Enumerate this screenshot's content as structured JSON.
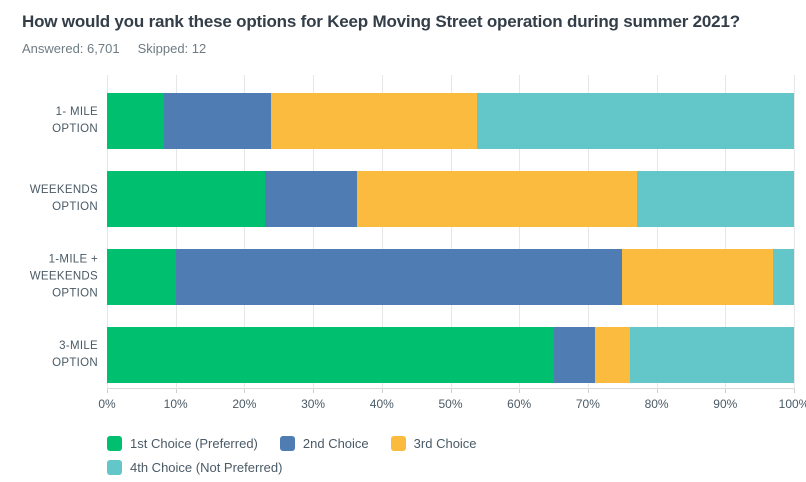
{
  "header": {
    "title": "How would you rank these options for Keep Moving Street operation during summer 2021?",
    "answered_label": "Answered: 6,701",
    "skipped_label": "Skipped: 12"
  },
  "chart_data": {
    "type": "bar",
    "orientation": "horizontal_stacked",
    "title": "How would you rank these options for Keep Moving Street operation during summer 2021?",
    "categories": [
      "1- MILE OPTION",
      "WEEKENDS OPTION",
      "1-MILE + WEEKENDS OPTION",
      "3-MILE OPTION"
    ],
    "category_label_lines": [
      [
        "1- MILE",
        "OPTION"
      ],
      [
        "WEEKENDS",
        "OPTION"
      ],
      [
        "1-MILE +",
        "WEEKENDS",
        "OPTION"
      ],
      [
        "3-MILE",
        "OPTION"
      ]
    ],
    "series": [
      {
        "name": "1st Choice (Preferred)",
        "color": "#00BF6F",
        "values": [
          8.3,
          23.0,
          10.0,
          65.1
        ]
      },
      {
        "name": "2nd Choice",
        "color": "#4F7DB3",
        "values": [
          15.6,
          13.4,
          64.9,
          6.0
        ]
      },
      {
        "name": "3rd Choice",
        "color": "#FBBB3F",
        "values": [
          30.0,
          40.7,
          22.1,
          5.1
        ]
      },
      {
        "name": "4th Choice (Not Preferred)",
        "color": "#63C6C8",
        "values": [
          46.1,
          22.9,
          3.0,
          23.8
        ]
      }
    ],
    "xlim": [
      0,
      100
    ],
    "x_tick_labels": [
      "0%",
      "10%",
      "20%",
      "30%",
      "40%",
      "50%",
      "60%",
      "70%",
      "80%",
      "90%",
      "100%"
    ],
    "grid": true,
    "legend_position": "bottom",
    "style_colors": {
      "title_text": "#333E48",
      "subtitle_text": "#6E7B83",
      "axis_text": "#4A5A66",
      "gridline": "#E7E7E7",
      "axis_line": "#D9D9D9"
    }
  }
}
